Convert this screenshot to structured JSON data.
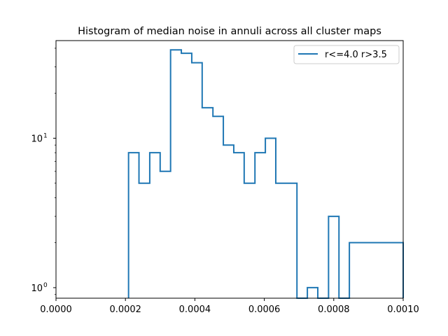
{
  "chart_data": {
    "type": "histogram",
    "title": "Histogram of median noise in annuli across all cluster maps",
    "xlabel": "",
    "ylabel": "",
    "xlim": [
      0.0,
      0.001
    ],
    "y_scale": "log",
    "ylim": [
      0.85,
      45
    ],
    "histtype": "step",
    "legend": {
      "placement": "top-right",
      "entries": [
        "r<=4.0  r>3.5"
      ]
    },
    "x_ticks": [
      {
        "value": 0.0,
        "label": "0.0000"
      },
      {
        "value": 0.0002,
        "label": "0.0002"
      },
      {
        "value": 0.0004,
        "label": "0.0004"
      },
      {
        "value": 0.0006,
        "label": "0.0006"
      },
      {
        "value": 0.0008,
        "label": "0.0008"
      },
      {
        "value": 0.001,
        "label": "0.0010"
      }
    ],
    "y_ticks": [
      {
        "value": 1,
        "base": "10",
        "exp": "0"
      },
      {
        "value": 10,
        "base": "10",
        "exp": "1"
      }
    ],
    "series": [
      {
        "name": "r<=4.0  r>3.5",
        "color": "#1f77b4",
        "bin_edges": [
          0.000209,
          0.000239,
          0.00027,
          0.0003,
          0.00033,
          0.000361,
          0.000391,
          0.000421,
          0.000452,
          0.000482,
          0.000512,
          0.000542,
          0.000573,
          0.000603,
          0.000633,
          0.000663,
          0.000694,
          0.000724,
          0.000754,
          0.000785,
          0.000815,
          0.000845,
          0.000875,
          0.000906,
          0.000936,
          0.000966,
          0.001
        ],
        "counts": [
          8,
          5,
          8,
          6,
          39,
          37,
          32,
          16,
          14,
          9,
          8,
          5,
          8,
          10,
          5,
          5,
          0,
          1,
          0,
          3,
          0,
          2,
          2,
          2,
          2,
          2
        ]
      }
    ]
  }
}
